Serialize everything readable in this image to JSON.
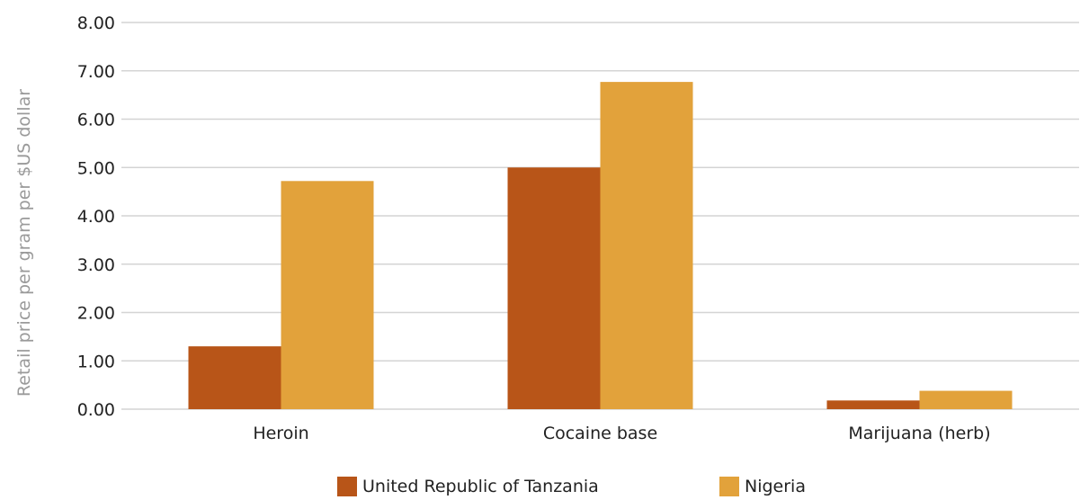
{
  "chart_data": {
    "type": "bar",
    "title": "",
    "xlabel": "",
    "ylabel": "Retail price per gram per $US dollar",
    "categories": [
      "Heroin",
      "Cocaine base",
      "Marijuana (herb)"
    ],
    "series": [
      {
        "name": "United Republic of Tanzania",
        "color": "#b85518",
        "values": [
          1.3,
          5.0,
          0.18
        ]
      },
      {
        "name": "Nigeria",
        "color": "#e2a23b",
        "values": [
          4.72,
          6.77,
          0.38
        ]
      }
    ],
    "ylim": [
      0,
      8
    ],
    "yticks": [
      "0.00",
      "1.00",
      "2.00",
      "3.00",
      "4.00",
      "5.00",
      "6.00",
      "7.00",
      "8.00"
    ],
    "grid": true,
    "legend_position": "bottom"
  }
}
